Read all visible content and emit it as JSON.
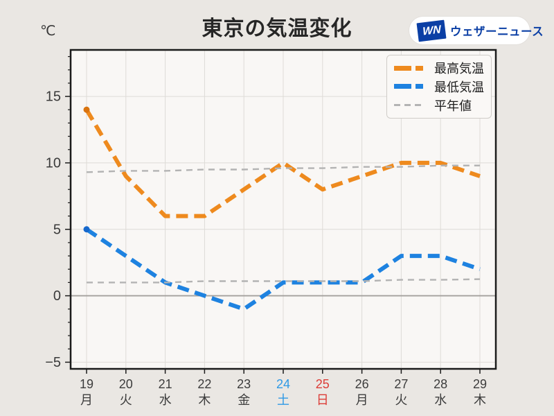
{
  "header": {
    "title": "東京の気温変化",
    "unit_label": "℃",
    "logo": {
      "mark": "WN",
      "text": "ウェザーニュース",
      "brand_color": "#0b3fa5"
    }
  },
  "legend": [
    {
      "label": "最高気温",
      "color": "#ee8a1e",
      "style": "thick"
    },
    {
      "label": "最低気温",
      "color": "#1e82e0",
      "style": "thick"
    },
    {
      "label": "平年値",
      "color": "#b3b3b3",
      "style": "thin"
    }
  ],
  "chart_data": {
    "type": "line",
    "title": "東京の気温変化",
    "xlabel": "",
    "ylabel": "℃",
    "ylim": [
      -5.5,
      18.5
    ],
    "yticks": [
      15,
      10,
      5,
      0,
      -5
    ],
    "ytick_labels": [
      "15",
      "10",
      "5",
      "0",
      "−5"
    ],
    "minor_ytick_step": 1,
    "grid": true,
    "legend_position": "upper right",
    "x_dates": [
      "19",
      "20",
      "21",
      "22",
      "23",
      "24",
      "25",
      "26",
      "27",
      "28",
      "29"
    ],
    "x_weekdays": [
      "月",
      "火",
      "水",
      "木",
      "金",
      "土",
      "日",
      "月",
      "火",
      "水",
      "木"
    ],
    "x_day_types": [
      "weekday",
      "weekday",
      "weekday",
      "weekday",
      "weekday",
      "saturday",
      "sunday",
      "weekday",
      "weekday",
      "weekday",
      "weekday"
    ],
    "label_colors": {
      "weekday": "#3c3c3c",
      "saturday": "#2f99e5",
      "sunday": "#dc3c37"
    },
    "series": [
      {
        "name": "最高気温",
        "role": "max",
        "values": [
          14,
          9,
          6,
          6,
          8,
          10,
          8,
          9,
          10,
          10,
          9
        ],
        "color": "#ee8a1e",
        "dot_color": "#d9730f",
        "width": 6,
        "dash": "17 9",
        "start_dot": true
      },
      {
        "name": "最低気温",
        "role": "min",
        "values": [
          5,
          3,
          1,
          0,
          -1,
          1,
          1,
          1,
          3,
          3,
          2
        ],
        "color": "#1e82e0",
        "dot_color": "#1668cc",
        "width": 6,
        "dash": "17 9",
        "start_dot": true
      },
      {
        "name": "平年値",
        "role": "normal-max",
        "values": [
          9.3,
          9.4,
          9.4,
          9.5,
          9.5,
          9.6,
          9.6,
          9.7,
          9.7,
          9.8,
          9.8
        ],
        "color": "#b3b3b3",
        "width": 2.4,
        "dash": "9 7",
        "start_dot": false
      },
      {
        "name": "平年値",
        "role": "normal-min",
        "values": [
          1.0,
          1.0,
          1.0,
          1.1,
          1.1,
          1.1,
          1.1,
          1.1,
          1.2,
          1.2,
          1.25
        ],
        "color": "#b3b3b3",
        "width": 2.4,
        "dash": "9 7",
        "start_dot": false
      }
    ],
    "colors": {
      "background": "#eae7e3",
      "plot_background": "#f9f7f5",
      "grid": "#dedbd7",
      "zero_line": "#a3a09d",
      "frame": "#1b1b1b",
      "tick_label": "#3a3a3a"
    }
  }
}
